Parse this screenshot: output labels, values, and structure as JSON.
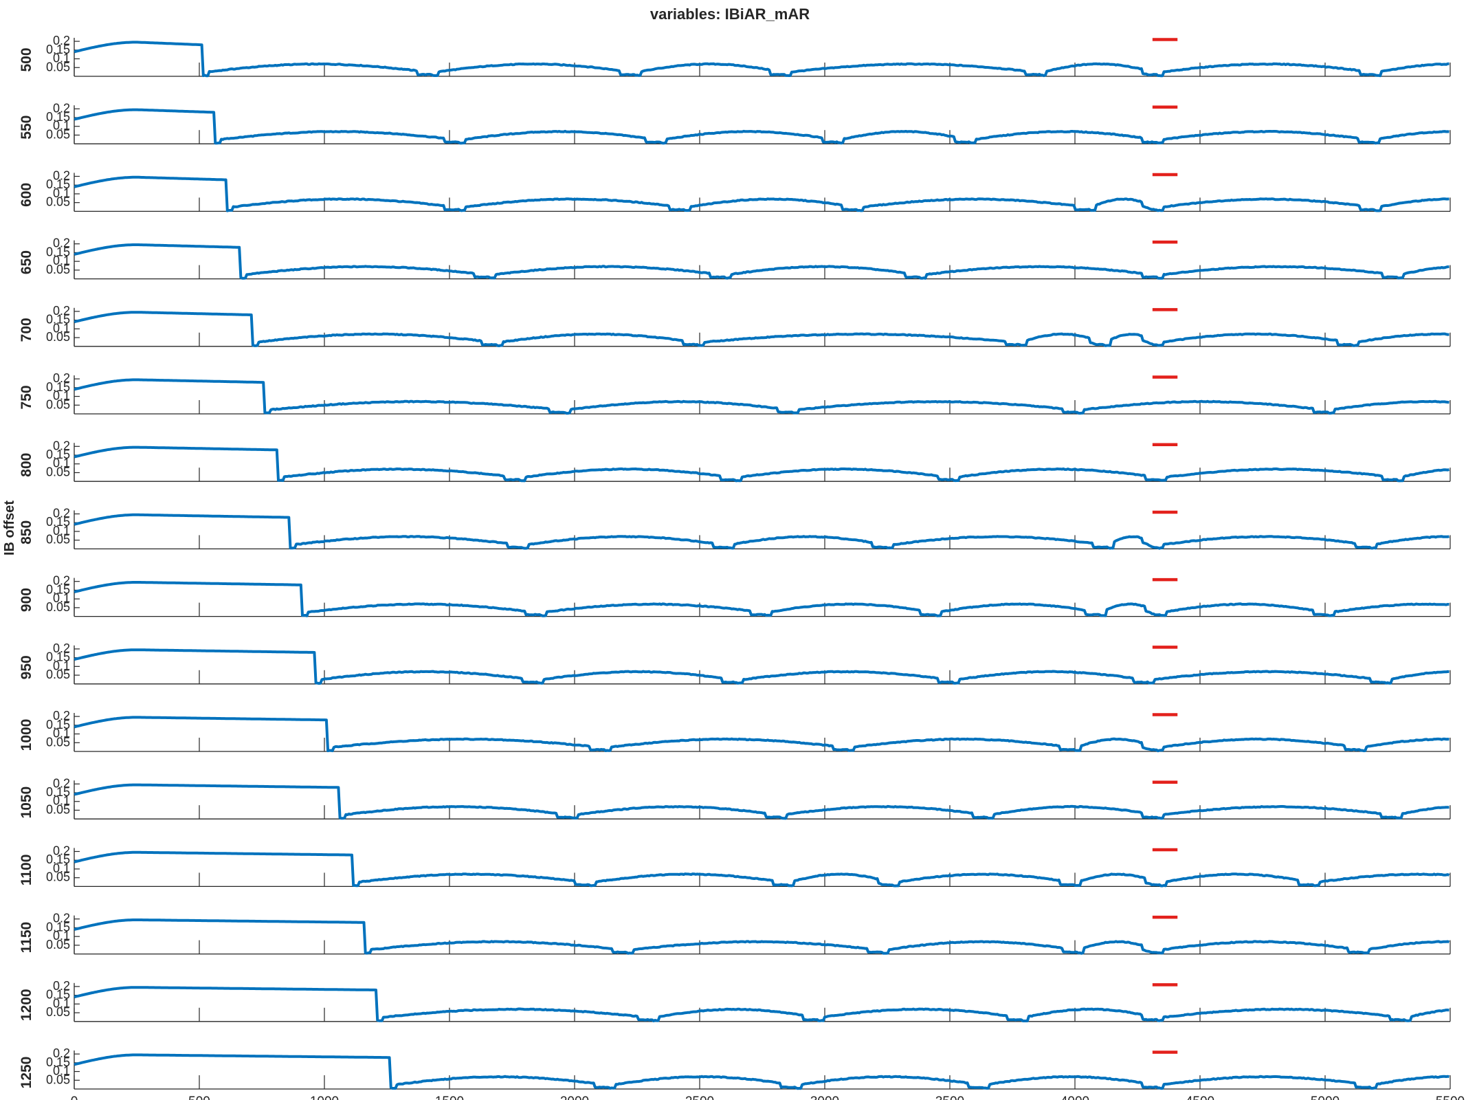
{
  "chart_data": {
    "type": "line",
    "title": "variables: IBiAR_mAR",
    "ylabel": "IB offset",
    "xlabel": "",
    "xlim": [
      0,
      5500
    ],
    "ylim": [
      0,
      0.22
    ],
    "x_ticks": [
      0,
      500,
      1000,
      1500,
      2000,
      2500,
      3000,
      3500,
      4000,
      4500,
      5000,
      5500
    ],
    "y_ticks": [
      0.05,
      0.1,
      0.15,
      0.2
    ],
    "y_tick_labels": [
      "0.05",
      "0.1",
      "0.15",
      "0.2"
    ],
    "grid": false,
    "series_color": "#0072bd",
    "marker": {
      "color": "#e3211c",
      "x_start": 4310,
      "x_end": 4410,
      "y": 0.21
    },
    "offsets": [
      500,
      550,
      600,
      650,
      700,
      750,
      800,
      850,
      900,
      950,
      1000,
      1050,
      1100,
      1150,
      1200,
      1250
    ],
    "offset_labels": [
      "500",
      "550",
      "600",
      "650",
      "700",
      "750",
      "800",
      "850",
      "900",
      "950",
      "1000",
      "1050",
      "1100",
      "1150",
      "1200",
      "1250"
    ],
    "panels": [
      {
        "offset": "500",
        "dips": [
          510,
          1430,
          2240,
          2840,
          3860,
          4330,
          5200
        ],
        "plateau": 0.182
      },
      {
        "offset": "550",
        "dips": [
          560,
          1540,
          2340,
          3050,
          3580,
          4330,
          5190
        ],
        "plateau": 0.18
      },
      {
        "offset": "600",
        "dips": [
          610,
          1540,
          2440,
          3130,
          4060,
          4330,
          5200
        ],
        "plateau": 0.18
      },
      {
        "offset": "650",
        "dips": [
          660,
          1660,
          2600,
          3380,
          4330,
          5290
        ],
        "plateau": 0.18
      },
      {
        "offset": "700",
        "dips": [
          710,
          1690,
          2490,
          3780,
          4120,
          4330,
          5110
        ],
        "plateau": 0.18
      },
      {
        "offset": "750",
        "dips": [
          760,
          1960,
          2870,
          4010,
          5010
        ],
        "plateau": 0.18
      },
      {
        "offset": "800",
        "dips": [
          810,
          1780,
          2640,
          3510,
          4340,
          5290
        ],
        "plateau": 0.18
      },
      {
        "offset": "850",
        "dips": [
          860,
          1790,
          2610,
          3250,
          4130,
          4330,
          5180
        ],
        "plateau": 0.18
      },
      {
        "offset": "900",
        "dips": [
          910,
          1860,
          2760,
          3440,
          4100,
          4340,
          5010
        ],
        "plateau": 0.18
      },
      {
        "offset": "950",
        "dips": [
          960,
          1850,
          2650,
          3510,
          4290,
          5240
        ],
        "plateau": 0.18
      },
      {
        "offset": "1000",
        "dips": [
          1010,
          2120,
          3090,
          4000,
          4330,
          5140
        ],
        "plateau": 0.18
      },
      {
        "offset": "1050",
        "dips": [
          1060,
          1990,
          2820,
          3650,
          4330,
          5280
        ],
        "plateau": 0.18
      },
      {
        "offset": "1100",
        "dips": [
          1110,
          2060,
          2850,
          3270,
          4000,
          4340,
          4950
        ],
        "plateau": 0.18
      },
      {
        "offset": "1150",
        "dips": [
          1160,
          2210,
          3230,
          4010,
          4330,
          5150
        ],
        "plateau": 0.18
      },
      {
        "offset": "1200",
        "dips": [
          1210,
          2310,
          2970,
          3790,
          4330,
          5320
        ],
        "plateau": 0.18
      },
      {
        "offset": "1250",
        "dips": [
          1260,
          2140,
          2880,
          3630,
          4330,
          5180
        ],
        "plateau": 0.18
      }
    ]
  }
}
